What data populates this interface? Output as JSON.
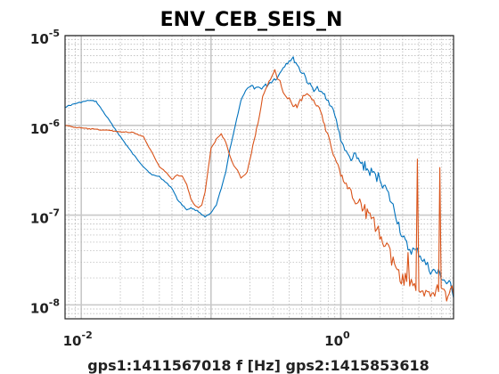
{
  "chart_data": {
    "type": "line",
    "title": "ENV_CEB_SEIS_N",
    "xlabel": "gps1:1411567018   f [Hz]   gps2:1415853618",
    "ylabel": "",
    "xscale": "log",
    "yscale": "log",
    "xlim": [
      0.0075,
      7.4
    ],
    "ylim": [
      7e-09,
      1e-05
    ],
    "grid": true,
    "x_ticks": [
      {
        "value": 0.01,
        "label": "10",
        "exp": "-2"
      },
      {
        "value": 1,
        "label": "10",
        "exp": "0"
      }
    ],
    "y_ticks": [
      {
        "value": 1e-05,
        "label": "10",
        "exp": "-5"
      },
      {
        "value": 1e-06,
        "label": "10",
        "exp": "-6"
      },
      {
        "value": 1e-07,
        "label": "10",
        "exp": "-7"
      },
      {
        "value": 1e-08,
        "label": "10",
        "exp": "-8"
      }
    ],
    "colors": {
      "series1": "#0072bd",
      "series2": "#d95319",
      "grid_major": "#c8c8c8",
      "grid_minor": "#b0b0b0"
    },
    "series": [
      {
        "color": "#0072bd",
        "x": [
          0.0075,
          0.009,
          0.0115,
          0.013,
          0.016,
          0.02,
          0.025,
          0.03,
          0.035,
          0.04,
          0.045,
          0.05,
          0.055,
          0.06,
          0.065,
          0.07,
          0.08,
          0.09,
          0.1,
          0.11,
          0.12,
          0.13,
          0.14,
          0.15,
          0.17,
          0.19,
          0.21,
          0.24,
          0.27,
          0.3,
          0.33,
          0.36,
          0.4,
          0.43,
          0.46,
          0.49,
          0.52,
          0.55,
          0.58,
          0.62,
          0.66,
          0.7,
          0.75,
          0.8,
          0.85,
          0.9,
          0.95,
          1.0,
          1.1,
          1.2,
          1.3,
          1.4,
          1.5,
          1.6,
          1.8,
          2.0,
          2.2,
          2.4,
          2.6,
          2.8,
          3.0,
          3.3,
          3.6,
          4.0,
          4.4,
          4.8,
          5.3,
          5.8,
          6.4,
          7.0,
          7.4
        ],
        "y": [
          1.6e-06,
          1.75e-06,
          1.9e-06,
          1.85e-06,
          1.2e-06,
          7.5e-07,
          4.8e-07,
          3.5e-07,
          2.8e-07,
          2.7e-07,
          2.3e-07,
          2e-07,
          1.5e-07,
          1.3e-07,
          1.15e-07,
          1.2e-07,
          1.1e-07,
          9.5e-08,
          1.05e-07,
          1.3e-07,
          2e-07,
          3e-07,
          5.5e-07,
          8.5e-07,
          1.9e-06,
          2.6e-06,
          2.7e-06,
          2.6e-06,
          2.8e-06,
          3.2e-06,
          3.5e-06,
          4.5e-06,
          5.3e-06,
          5.5e-06,
          4.8e-06,
          4e-06,
          3.8e-06,
          3.1e-06,
          2.8e-06,
          2.5e-06,
          2.6e-06,
          2.3e-06,
          2.2e-06,
          1.9e-06,
          1.6e-06,
          1.3e-06,
          9.5e-07,
          7e-07,
          5e-07,
          4.2e-07,
          4.4e-07,
          3.8e-07,
          3.6e-07,
          3.2e-07,
          2.8e-07,
          2.6e-07,
          2e-07,
          1.5e-07,
          1.1e-07,
          8e-08,
          5.5e-08,
          4.3e-08,
          4e-08,
          3.8e-08,
          3e-08,
          2.5e-08,
          2.3e-08,
          2.2e-08,
          1.8e-08,
          1.6e-08,
          1.2e-08
        ]
      },
      {
        "color": "#d95319",
        "x": [
          0.0075,
          0.009,
          0.011,
          0.013,
          0.016,
          0.02,
          0.025,
          0.03,
          0.035,
          0.04,
          0.045,
          0.05,
          0.055,
          0.06,
          0.065,
          0.07,
          0.075,
          0.08,
          0.085,
          0.09,
          0.1,
          0.11,
          0.12,
          0.13,
          0.14,
          0.15,
          0.16,
          0.17,
          0.19,
          0.21,
          0.23,
          0.25,
          0.28,
          0.31,
          0.34,
          0.37,
          0.4,
          0.43,
          0.46,
          0.5,
          0.55,
          0.6,
          0.65,
          0.7,
          0.75,
          0.8,
          0.85,
          0.9,
          0.95,
          1.0,
          1.1,
          1.2,
          1.3,
          1.4,
          1.5,
          1.6,
          1.8,
          2.0,
          2.2,
          2.4,
          2.6,
          2.8,
          3.0,
          3.3,
          3.6,
          4.0,
          4.4,
          4.8,
          5.3,
          5.8,
          6.4,
          7.0,
          7.4
        ],
        "y": [
          1e-06,
          9.5e-07,
          9.2e-07,
          9e-07,
          8.8e-07,
          8.5e-07,
          8.3e-07,
          7.5e-07,
          5e-07,
          3.5e-07,
          3e-07,
          2.5e-07,
          2.8e-07,
          2.7e-07,
          2.2e-07,
          1.5e-07,
          1.3e-07,
          1.2e-07,
          1.3e-07,
          1.8e-07,
          5.5e-07,
          7e-07,
          8e-07,
          6.5e-07,
          4.5e-07,
          3.5e-07,
          3.2e-07,
          2.6e-07,
          3e-07,
          6e-07,
          1.1e-06,
          2e-06,
          3e-06,
          4e-06,
          3e-06,
          2.2e-06,
          2e-06,
          1.7e-06,
          1.6e-06,
          2e-06,
          2.2e-06,
          1.9e-06,
          1.7e-06,
          1.5e-06,
          1e-06,
          7.5e-07,
          5.5e-07,
          4.3e-07,
          3.5e-07,
          2.8e-07,
          2.2e-07,
          1.8e-07,
          1.6e-07,
          1.4e-07,
          1.2e-07,
          1e-07,
          8e-08,
          6e-08,
          4.5e-08,
          3.5e-08,
          2.7e-08,
          2.3e-08,
          2e-08,
          1.8e-08,
          1.6e-08,
          1.5e-08,
          1.4e-08,
          1.3e-08,
          1.5e-08,
          1.3e-08,
          1.2e-08,
          1.4e-08,
          1.3e-08
        ]
      }
    ]
  }
}
